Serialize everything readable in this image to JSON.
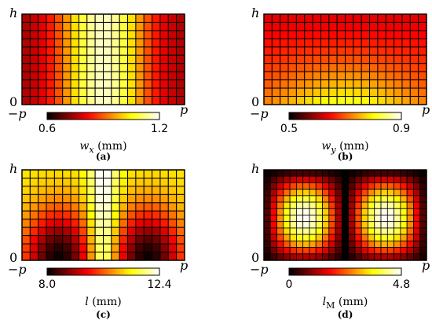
{
  "chart_data": [
    {
      "type": "heatmap",
      "panel_label": "(a)",
      "y_top_tick": "h",
      "y_bottom_tick": "0",
      "x_left_tick": "−p",
      "x_right_tick": "p",
      "colorbar_min_label": "0.6",
      "colorbar_max_label": "1.2",
      "colorbar_range": [
        0.6,
        1.2
      ],
      "colorbar_label_symbol": "w",
      "colorbar_label_subscript": "x",
      "colorbar_label_unit": "(mm)",
      "grid": {
        "cols": 20,
        "rows": 11
      },
      "pattern": "wx",
      "colormap": "hot"
    },
    {
      "type": "heatmap",
      "panel_label": "(b)",
      "y_top_tick": "h",
      "y_bottom_tick": "0",
      "x_left_tick": "−p",
      "x_right_tick": "p",
      "colorbar_min_label": "0.5",
      "colorbar_max_label": "0.9",
      "colorbar_range": [
        0.5,
        0.9
      ],
      "colorbar_label_symbol": "w",
      "colorbar_label_subscript": "y",
      "colorbar_label_unit": "(mm)",
      "grid": {
        "cols": 20,
        "rows": 11
      },
      "pattern": "wy",
      "colormap": "hot"
    },
    {
      "type": "heatmap",
      "panel_label": "(c)",
      "y_top_tick": "h",
      "y_bottom_tick": "0",
      "x_left_tick": "−p",
      "x_right_tick": "p",
      "colorbar_min_label": "8.0",
      "colorbar_max_label": "12.4",
      "colorbar_range": [
        8.0,
        12.4
      ],
      "colorbar_label_symbol": "l",
      "colorbar_label_subscript": "",
      "colorbar_label_unit": "(mm)",
      "grid": {
        "cols": 20,
        "rows": 11
      },
      "pattern": "l",
      "colormap": "hot"
    },
    {
      "type": "heatmap",
      "panel_label": "(d)",
      "y_top_tick": "h",
      "y_bottom_tick": "0",
      "x_left_tick": "−p",
      "x_right_tick": "p",
      "colorbar_min_label": "0",
      "colorbar_max_label": "4.8",
      "colorbar_range": [
        0,
        4.8
      ],
      "colorbar_label_symbol": "l",
      "colorbar_label_subscript": "M",
      "colorbar_label_unit": "(mm)",
      "grid": {
        "cols": 25,
        "rows": 14
      },
      "pattern": "lM",
      "colormap": "hot"
    }
  ]
}
